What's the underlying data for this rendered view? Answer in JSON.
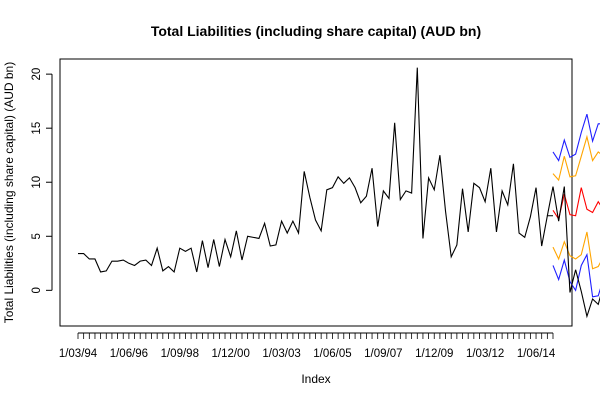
{
  "chart_data": {
    "type": "line",
    "title": "Total Liabilities (including share capital) (AUD bn)",
    "xlabel": "Index",
    "ylabel": "Total Liabilities (including share capital) (AUD bn)",
    "x_tick_labels": [
      "1/03/94",
      "1/06/96",
      "1/09/98",
      "1/12/00",
      "1/03/03",
      "1/06/05",
      "1/09/07",
      "1/12/09",
      "1/03/12",
      "1/06/14"
    ],
    "y_ticks": [
      0,
      5,
      10,
      15,
      20
    ],
    "ylim": [
      -3.3,
      21.4
    ],
    "n_index": 85,
    "series": [
      {
        "role": "observed",
        "color": "#000000",
        "values": [
          3.4,
          3.4,
          2.9,
          2.9,
          1.7,
          1.8,
          2.7,
          2.7,
          2.8,
          2.5,
          2.3,
          2.7,
          2.8,
          2.3,
          3.9,
          1.8,
          2.2,
          1.7,
          3.9,
          3.6,
          3.9,
          1.7,
          4.6,
          2.1,
          4.7,
          2.2,
          4.7,
          3.1,
          5.5,
          2.8,
          5.0,
          4.9,
          4.8,
          6.2,
          4.1,
          4.2,
          6.4,
          5.3,
          6.4,
          5.3,
          11.0,
          8.6,
          6.5,
          5.5,
          9.3,
          9.5,
          10.5,
          9.9,
          10.4,
          9.5,
          8.1,
          8.7,
          11.3,
          5.9,
          9.2,
          8.5,
          15.5,
          8.4,
          9.2,
          9.0,
          20.6,
          4.8,
          10.4,
          9.3,
          12.5,
          7.3,
          3.1,
          4.2,
          9.4,
          5.4,
          9.9,
          9.5,
          8.2,
          11.3,
          5.4,
          9.2,
          7.9,
          11.7,
          5.3,
          4.9,
          6.8,
          9.5,
          4.1,
          6.9,
          6.9
        ]
      },
      {
        "role": "holdout",
        "color": "#000000",
        "x_start": 84,
        "values": [
          6.9,
          9.6,
          6.4,
          9.6,
          -0.2,
          1.9,
          -0.1,
          -2.4,
          -0.8,
          -1.3,
          0.6,
          2.0,
          2.5
        ]
      },
      {
        "role": "point-forecast",
        "color": "#ff0000",
        "x_start": 85,
        "values": [
          7.4,
          6.6,
          8.9,
          7.0,
          6.9,
          9.5,
          7.5,
          7.2,
          8.2,
          7.4,
          7.9,
          6.8,
          7.3,
          7.4
        ]
      },
      {
        "role": "interval-80",
        "color": "#ffa500",
        "x_start": 85,
        "upper": [
          10.8,
          10.2,
          12.4,
          10.5,
          10.6,
          12.4,
          14.2,
          12.0,
          12.8,
          12.4,
          11.8,
          11.7,
          12.0,
          12.2
        ],
        "lower": [
          4.0,
          2.9,
          4.5,
          3.2,
          2.9,
          3.3,
          5.4,
          2.0,
          2.2,
          3.2,
          1.7,
          1.3,
          2.5,
          2.6
        ]
      },
      {
        "role": "interval-95",
        "color": "#1f1fff",
        "x_start": 85,
        "upper": [
          12.8,
          12.0,
          13.9,
          12.3,
          12.6,
          14.6,
          16.3,
          13.8,
          15.4,
          15.4,
          14.5,
          15.2,
          14.2,
          14.7
        ],
        "lower": [
          2.3,
          1.0,
          2.8,
          0.8,
          0.0,
          2.3,
          3.3,
          -0.6,
          -0.5,
          1.2,
          -0.5,
          -0.8,
          -0.2,
          0.1
        ]
      }
    ]
  }
}
